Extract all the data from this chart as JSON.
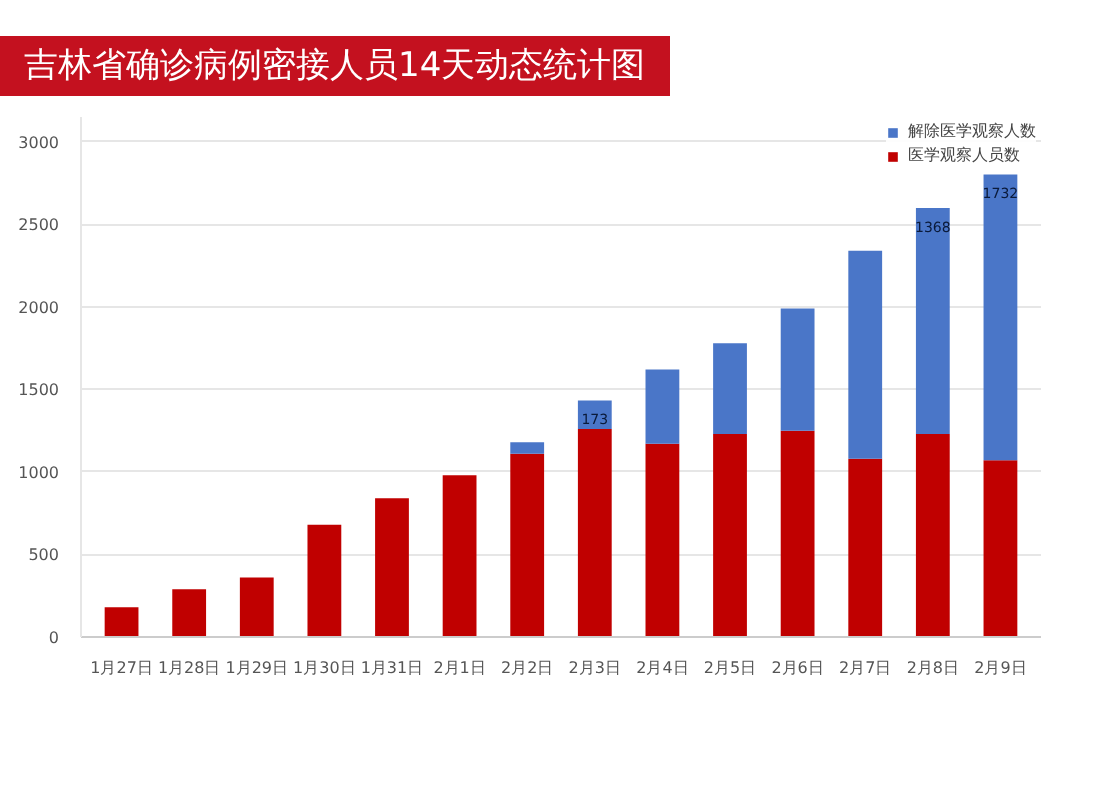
{
  "chart_data": {
    "type": "bar",
    "title": "吉林省确诊病例密接人员14天动态统计图",
    "stacked": true,
    "categories": [
      "1月27日",
      "1月28日",
      "1月29日",
      "1月30日",
      "1月31日",
      "2月1日",
      "2月2日",
      "2月3日",
      "2月4日",
      "2月5日",
      "2月6日",
      "2月7日",
      "2月8日",
      "2月9日"
    ],
    "series": [
      {
        "name": "医学观察人员数",
        "color": "#c00000",
        "values": [
          180,
          290,
          360,
          680,
          840,
          980,
          1110,
          1260,
          1170,
          1230,
          1250,
          1080,
          1230,
          1070
        ]
      },
      {
        "name": "解除医学观察人数",
        "color": "#4a76c8",
        "values": [
          0,
          0,
          0,
          0,
          0,
          0,
          70,
          173,
          450,
          550,
          740,
          1260,
          1368,
          1732
        ],
        "value_labels": [
          null,
          null,
          null,
          null,
          null,
          null,
          null,
          "173",
          null,
          null,
          null,
          null,
          "1368",
          "1732"
        ]
      }
    ],
    "ylim": [
      0,
      3150
    ],
    "yticks": [
      0,
      500,
      1000,
      1500,
      2000,
      2500,
      3000
    ],
    "grid": "y",
    "legend": "top right"
  }
}
